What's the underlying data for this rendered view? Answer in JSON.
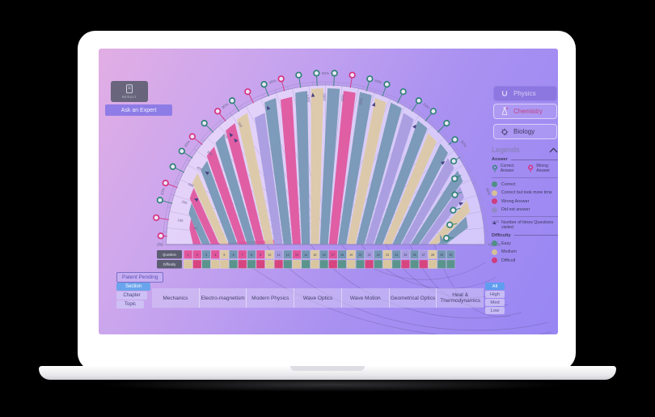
{
  "header": {
    "logo_label": "Result",
    "ask_expert_label": "Ask an Expert"
  },
  "subjects": [
    {
      "label": "Physics",
      "icon": "magnet-icon",
      "active": true,
      "label_color": "#d9d2f6"
    },
    {
      "label": "Chemistry",
      "icon": "flask-icon",
      "active": false,
      "label_color": "#c2407f"
    },
    {
      "label": "Biology",
      "icon": "microbe-icon",
      "active": false,
      "label_color": "#3c3660"
    }
  ],
  "legend": {
    "title": "Legends",
    "answer_label": "Answer",
    "pins": [
      {
        "label": "Correct Answer",
        "color": "#2f8376"
      },
      {
        "label": "Wrong Answer",
        "color": "#d6327f"
      }
    ],
    "statuses": [
      {
        "label": "Correct",
        "color": "#4f8f86"
      },
      {
        "label": "Correct but took more time",
        "color": "#d4c096"
      },
      {
        "label": "Wrong Answer",
        "color": "#cf3d7f"
      },
      {
        "label": "Did not answer",
        "color": "#908bc7"
      }
    ],
    "visits_note": "Number of times Questions visited",
    "difficulty_label": "Difficulty",
    "difficulties": [
      {
        "label": "Easy",
        "color": "#4f8f86"
      },
      {
        "label": "Medium",
        "color": "#d4c096"
      },
      {
        "label": "Difficult",
        "color": "#cf3d7f"
      }
    ]
  },
  "footer": {
    "patent_label": "Patent Pending",
    "level_tabs": [
      "Section",
      "Chapter",
      "Topic"
    ],
    "active_level": "Section",
    "chapters": [
      "Mechanics",
      "Electro-magnetism",
      "Modern Physics",
      "Wave Optics",
      "Wave Motion",
      "Geometrical Optics",
      "Heat & Thermodynamics"
    ],
    "filters": [
      "All",
      "High",
      "Med",
      "Low"
    ],
    "active_filter": "All"
  },
  "chart_data": {
    "type": "radial-fan",
    "title": "",
    "axis_rows": [
      "Question",
      "Difficulty"
    ],
    "start_label": "0%",
    "end_label": "=100%",
    "percent_ticks": [
      10,
      20,
      30,
      40,
      50,
      60,
      70,
      80,
      90
    ],
    "time_labels": [
      {
        "pct": 5,
        "value": "100"
      },
      {
        "pct": 9,
        "value": "200"
      },
      {
        "pct": 13,
        "value": "300"
      },
      {
        "pct": 17,
        "value": "400"
      },
      {
        "pct": 21,
        "value": "500"
      },
      {
        "pct": 26,
        "value": "600"
      },
      {
        "pct": 30,
        "value": "700"
      },
      {
        "pct": 46,
        "value": "1300"
      },
      {
        "pct": 50,
        "value": "1400"
      },
      {
        "pct": 54,
        "value": "1500"
      },
      {
        "pct": 58,
        "value": "1600"
      },
      {
        "pct": 96,
        "value": "2300"
      }
    ],
    "colors": {
      "rim": "#9d8fc9",
      "baseline": "#8b7fc0",
      "interior": "rgba(243,237,255,0.62)",
      "spoke": "rgba(122,108,176,0.38)",
      "label": "#6f6694",
      "visit_marker": "#453f82",
      "row_chip": "#5b5e71",
      "answer": {
        "correct": "#7496b4",
        "correct_slow": "#dcc9a4",
        "wrong": "#e0559c",
        "no_answer": "#a79bdf"
      },
      "difficulty": {
        "easy": "#5b948c",
        "medium": "#d9c69e",
        "difficult": "#d6457f"
      },
      "pin": {
        "correct": "#2f8376",
        "wrong": "#d6327f"
      }
    },
    "questions": [
      {
        "n": 1,
        "answer": "wrong",
        "difficulty": "medium",
        "time_fraction": 0.32,
        "visits": 1,
        "pin": "wrong",
        "pin_r": 1.0
      },
      {
        "n": 2,
        "answer": "wrong",
        "difficulty": "difficult",
        "time_fraction": 0.86,
        "visits": 2,
        "pin": "wrong",
        "pin_r": 1.04
      },
      {
        "n": 3,
        "answer": "correct",
        "difficulty": "easy",
        "time_fraction": 0.88,
        "visits": 1,
        "pin": "correct",
        "pin_r": 1.04
      },
      {
        "n": 4,
        "answer": "wrong",
        "difficulty": "medium",
        "time_fraction": 0.9,
        "visits": 2,
        "pin": "wrong",
        "pin_r": 1.04
      },
      {
        "n": 5,
        "answer": "correct_slow",
        "difficulty": "medium",
        "time_fraction": 0.92,
        "visits": 1,
        "pin": "correct",
        "pin_r": 1.04
      },
      {
        "n": 6,
        "answer": "correct",
        "difficulty": "easy",
        "time_fraction": 0.91,
        "visits": 2,
        "pin": "correct",
        "pin_r": 1.04
      },
      {
        "n": 7,
        "answer": "wrong",
        "difficulty": "difficult",
        "time_fraction": 0.93,
        "visits": 1,
        "pin": "wrong",
        "pin_r": 1.04
      },
      {
        "n": 8,
        "answer": "correct",
        "difficulty": "easy",
        "time_fraction": 0.94,
        "visits": 1,
        "pin": "correct",
        "pin_r": 1.04
      },
      {
        "n": 9,
        "answer": "wrong",
        "difficulty": "difficult",
        "time_fraction": 0.95,
        "visits": 3,
        "pin": "wrong",
        "pin_r": 1.04
      },
      {
        "n": 10,
        "answer": "correct_slow",
        "difficulty": "medium",
        "time_fraction": 0.96,
        "visits": 1,
        "pin": "correct",
        "pin_r": 1.04
      },
      {
        "n": 11,
        "answer": "no_answer",
        "difficulty": "difficult",
        "time_fraction": 0.91,
        "visits": 1,
        "pin": "wrong",
        "pin_r": 1.04
      },
      {
        "n": 12,
        "answer": "correct",
        "difficulty": "easy",
        "time_fraction": 0.97,
        "visits": 2,
        "pin": "correct",
        "pin_r": 1.04
      },
      {
        "n": 13,
        "answer": "wrong",
        "difficulty": "medium",
        "time_fraction": 0.95,
        "visits": 1,
        "pin": "wrong",
        "pin_r": 1.04
      },
      {
        "n": 14,
        "answer": "correct",
        "difficulty": "easy",
        "time_fraction": 0.97,
        "visits": 1,
        "pin": "correct",
        "pin_r": 1.04
      },
      {
        "n": 15,
        "answer": "correct_slow",
        "difficulty": "medium",
        "time_fraction": 0.98,
        "visits": 2,
        "pin": "correct",
        "pin_r": 1.04
      },
      {
        "n": 16,
        "answer": "correct",
        "difficulty": "easy",
        "time_fraction": 0.98,
        "visits": 1,
        "pin": "correct",
        "pin_r": 1.04
      },
      {
        "n": 17,
        "answer": "wrong",
        "difficulty": "difficult",
        "time_fraction": 0.97,
        "visits": 1,
        "pin": "wrong",
        "pin_r": 1.04
      },
      {
        "n": 18,
        "answer": "correct",
        "difficulty": "easy",
        "time_fraction": 0.98,
        "visits": 1,
        "pin": "correct",
        "pin_r": 1.04
      },
      {
        "n": 19,
        "answer": "correct_slow",
        "difficulty": "medium",
        "time_fraction": 0.97,
        "visits": 2,
        "pin": "correct",
        "pin_r": 1.04
      },
      {
        "n": 20,
        "answer": "correct",
        "difficulty": "easy",
        "time_fraction": 0.98,
        "visits": 1,
        "pin": "correct",
        "pin_r": 1.04
      },
      {
        "n": 21,
        "answer": "no_answer",
        "difficulty": "difficult",
        "time_fraction": 0.96,
        "visits": 1,
        "pin": "correct",
        "pin_r": 1.04
      },
      {
        "n": 22,
        "answer": "correct",
        "difficulty": "easy",
        "time_fraction": 0.97,
        "visits": 2,
        "pin": "correct",
        "pin_r": 1.04
      },
      {
        "n": 23,
        "answer": "correct_slow",
        "difficulty": "medium",
        "time_fraction": 0.95,
        "visits": 1,
        "pin": "correct",
        "pin_r": 1.04
      },
      {
        "n": 24,
        "answer": "correct",
        "difficulty": "easy",
        "time_fraction": 0.96,
        "visits": 1,
        "pin": "correct",
        "pin_r": 1.01
      },
      {
        "n": 25,
        "answer": "no_answer",
        "difficulty": "difficult",
        "time_fraction": 0.94,
        "visits": 2,
        "pin": "correct",
        "pin_r": 0.96
      },
      {
        "n": 26,
        "answer": "correct",
        "difficulty": "easy",
        "time_fraction": 0.95,
        "visits": 1,
        "pin": "correct",
        "pin_r": 0.91
      },
      {
        "n": 27,
        "answer": "no_answer",
        "difficulty": "difficult",
        "time_fraction": 0.92,
        "visits": 1,
        "pin": "correct",
        "pin_r": 0.87
      },
      {
        "n": 28,
        "answer": "correct_slow",
        "difficulty": "medium",
        "time_fraction": 0.93,
        "visits": 2,
        "pin": "correct",
        "pin_r": 0.83
      },
      {
        "n": 29,
        "answer": "correct",
        "difficulty": "easy",
        "time_fraction": 0.9,
        "visits": 1,
        "pin": "correct",
        "pin_r": 0.79
      },
      {
        "n": 30,
        "answer": "correct",
        "difficulty": "easy",
        "time_fraction": 0.72,
        "visits": 1,
        "pin": "correct",
        "pin_r": 0.76
      }
    ]
  }
}
